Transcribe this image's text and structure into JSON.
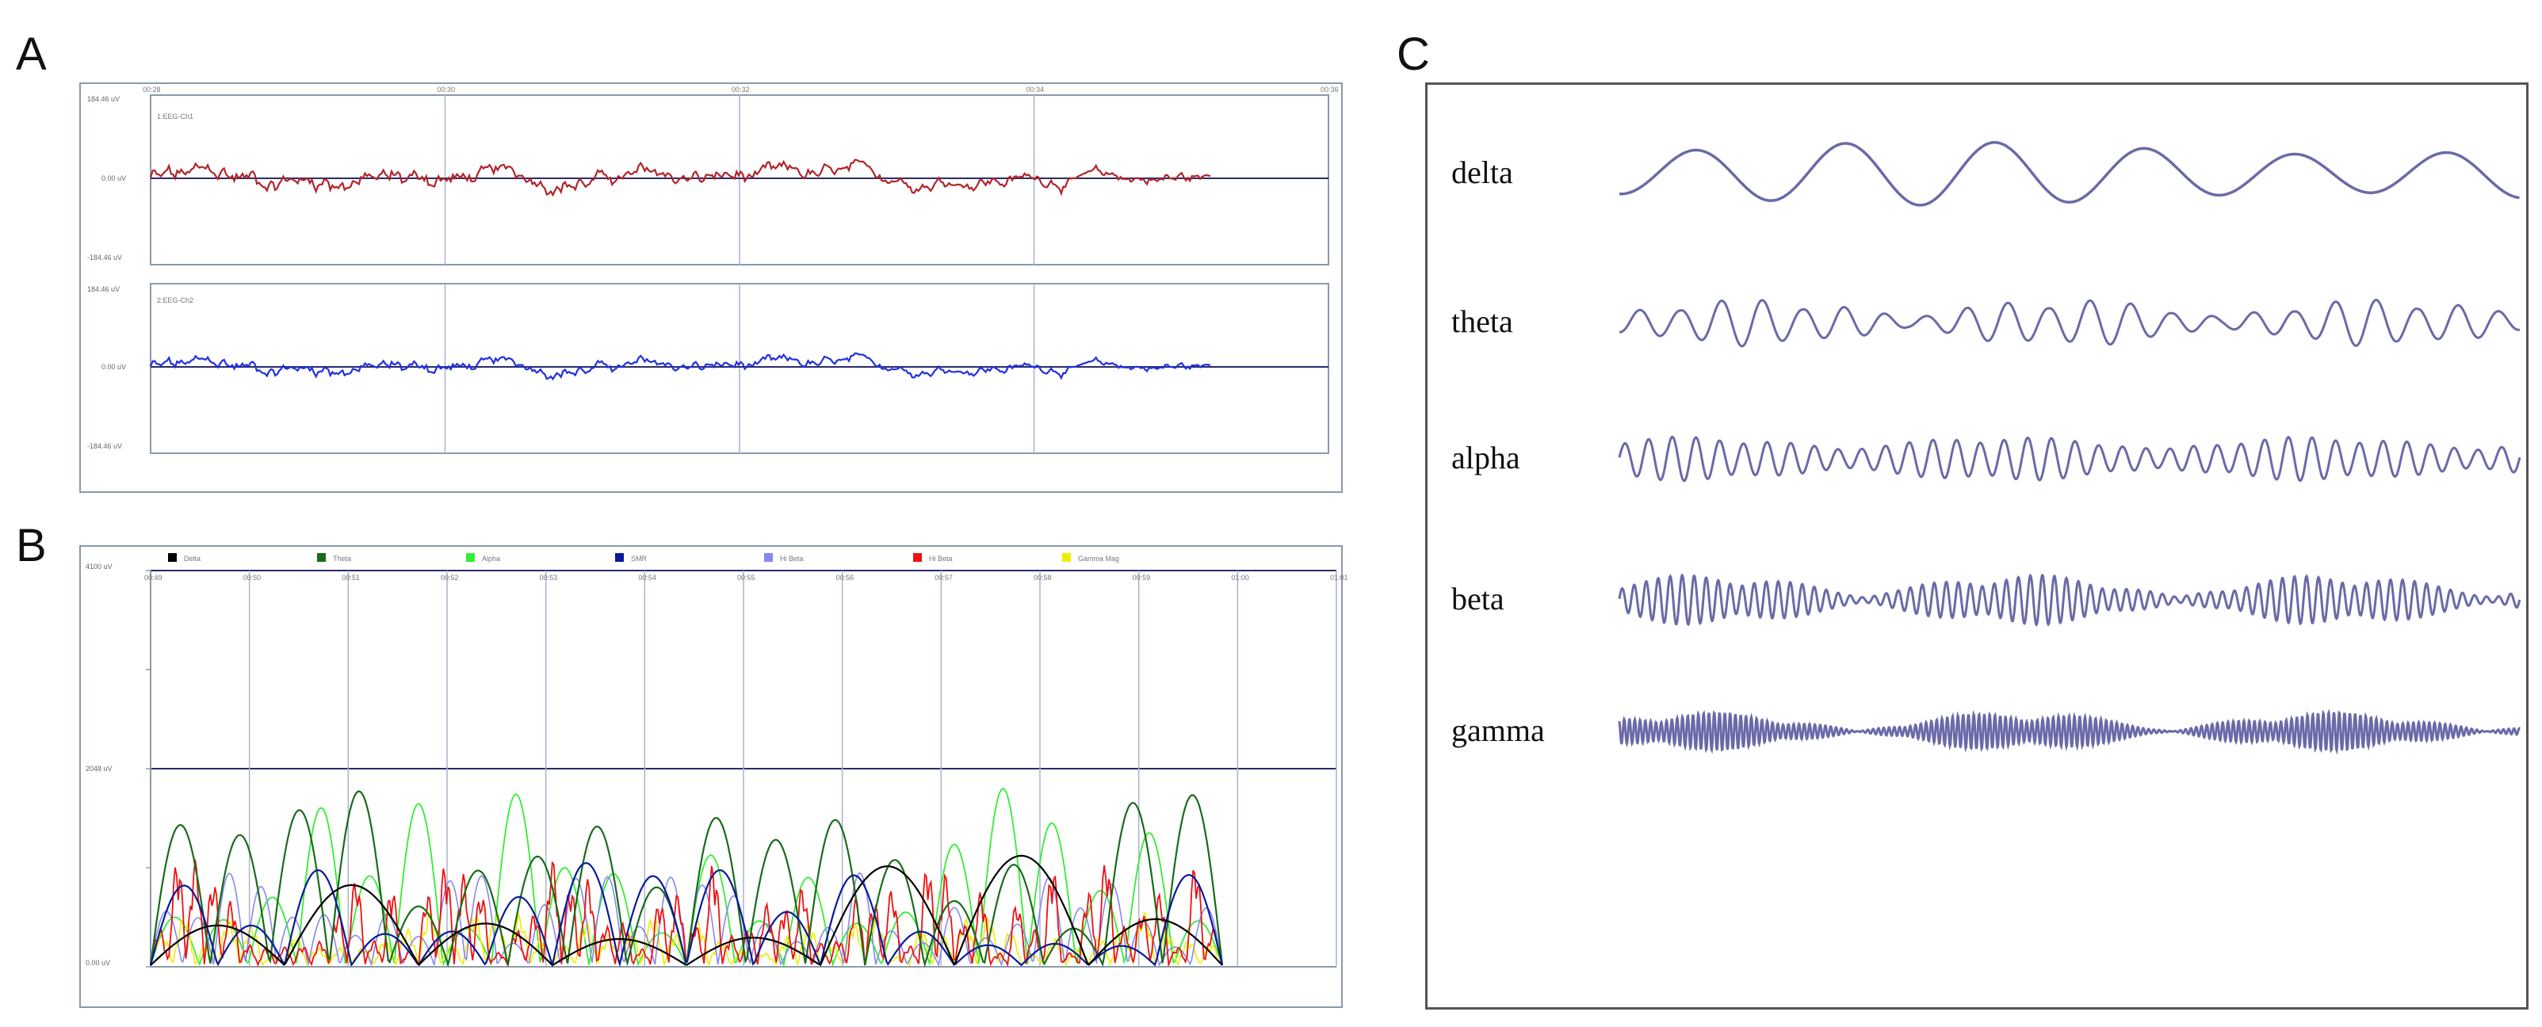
{
  "panels": {
    "a": {
      "letter": "A",
      "channels": [
        {
          "name": "1:EEG-Ch1",
          "color": "#b0252a",
          "y_top_label": "184.46 uV",
          "y_mid_label": "0.00 uV",
          "y_bottom_label": "-184.46 uV"
        },
        {
          "name": "2:EEG-Ch2",
          "color": "#2030e0",
          "y_top_label": "184.46 uV",
          "y_mid_label": "0.00 uV",
          "y_bottom_label": "-184.46 uV"
        }
      ],
      "time_labels": [
        "00:28",
        "00:30",
        "00:32",
        "00:34",
        "00:36"
      ]
    },
    "b": {
      "letter": "B",
      "legend": [
        {
          "label": "Delta",
          "color": "#000000"
        },
        {
          "label": "Theta",
          "color": "#1a6b1a"
        },
        {
          "label": "Alpha",
          "color": "#33ee33"
        },
        {
          "label": "SMR",
          "color": "#0a1a9a"
        },
        {
          "label": "Hi Beta",
          "color": "#8888ee"
        },
        {
          "label": "Hi Beta",
          "color": "#ee1111"
        },
        {
          "label": "Gamma Mag",
          "color": "#eeee00"
        }
      ],
      "y_top_label": "4100 uV",
      "y_mid_label": "2048 uV",
      "y_bottom_label": "0.00 uV",
      "time_labels": [
        "00:49",
        "00:50",
        "00:51",
        "00:52",
        "00:53",
        "00:54",
        "00:55",
        "00:56",
        "00:57",
        "00:58",
        "00:59",
        "01:00",
        "01:01"
      ]
    },
    "c": {
      "letter": "C",
      "wave_color": "#6a6aa8",
      "bands": [
        {
          "label": "delta"
        },
        {
          "label": "theta"
        },
        {
          "label": "alpha"
        },
        {
          "label": "beta"
        },
        {
          "label": "gamma"
        }
      ]
    }
  }
}
